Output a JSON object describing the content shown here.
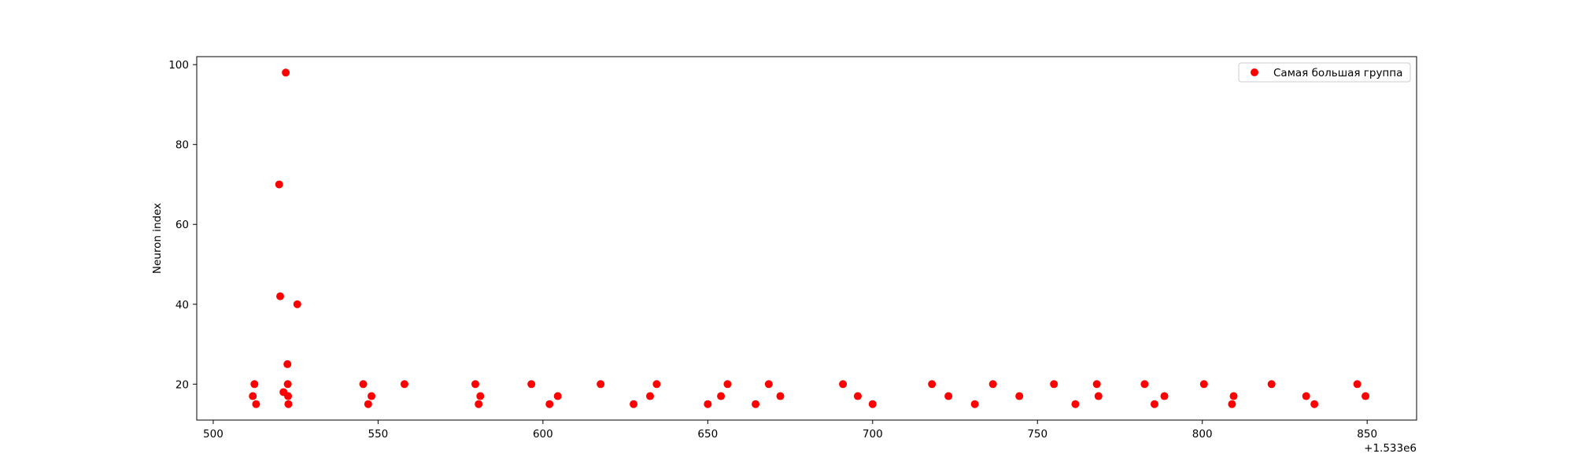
{
  "chart_data": {
    "type": "scatter",
    "title": "",
    "xlabel": "",
    "ylabel": "Neuron index",
    "x_offset_label": "+1.533e6",
    "xlim": [
      495,
      865
    ],
    "ylim": [
      11,
      102
    ],
    "x_ticks": [
      500,
      550,
      600,
      650,
      700,
      750,
      800,
      850
    ],
    "y_ticks": [
      20,
      40,
      60,
      80,
      100
    ],
    "grid": false,
    "legend_position": "upper-right",
    "series": [
      {
        "name": "Самая большая группа",
        "color": "#ff0000",
        "marker": "circle",
        "points": [
          {
            "x": 512,
            "y": 17
          },
          {
            "x": 512.5,
            "y": 20
          },
          {
            "x": 513,
            "y": 15
          },
          {
            "x": 520,
            "y": 70
          },
          {
            "x": 520.3,
            "y": 42
          },
          {
            "x": 521.3,
            "y": 18
          },
          {
            "x": 522,
            "y": 98
          },
          {
            "x": 522.5,
            "y": 25
          },
          {
            "x": 522.6,
            "y": 20
          },
          {
            "x": 522.7,
            "y": 17
          },
          {
            "x": 522.8,
            "y": 15
          },
          {
            "x": 525.5,
            "y": 40
          },
          {
            "x": 545.5,
            "y": 20
          },
          {
            "x": 547,
            "y": 15
          },
          {
            "x": 548,
            "y": 17
          },
          {
            "x": 558,
            "y": 20
          },
          {
            "x": 579.5,
            "y": 20
          },
          {
            "x": 580.5,
            "y": 15
          },
          {
            "x": 581,
            "y": 17
          },
          {
            "x": 596.5,
            "y": 20
          },
          {
            "x": 602,
            "y": 15
          },
          {
            "x": 604.5,
            "y": 17
          },
          {
            "x": 617.5,
            "y": 20
          },
          {
            "x": 627.5,
            "y": 15
          },
          {
            "x": 632.5,
            "y": 17
          },
          {
            "x": 634.5,
            "y": 20
          },
          {
            "x": 650,
            "y": 15
          },
          {
            "x": 654,
            "y": 17
          },
          {
            "x": 656,
            "y": 20
          },
          {
            "x": 664.5,
            "y": 15
          },
          {
            "x": 668.5,
            "y": 20
          },
          {
            "x": 672,
            "y": 17
          },
          {
            "x": 691,
            "y": 20
          },
          {
            "x": 695.5,
            "y": 17
          },
          {
            "x": 700,
            "y": 15
          },
          {
            "x": 718,
            "y": 20
          },
          {
            "x": 723,
            "y": 17
          },
          {
            "x": 731,
            "y": 15
          },
          {
            "x": 736.5,
            "y": 20
          },
          {
            "x": 744.5,
            "y": 17
          },
          {
            "x": 755,
            "y": 20
          },
          {
            "x": 761.5,
            "y": 15
          },
          {
            "x": 768,
            "y": 20
          },
          {
            "x": 768.5,
            "y": 17
          },
          {
            "x": 782.5,
            "y": 20
          },
          {
            "x": 785.5,
            "y": 15
          },
          {
            "x": 788.5,
            "y": 17
          },
          {
            "x": 800.5,
            "y": 20
          },
          {
            "x": 809,
            "y": 15
          },
          {
            "x": 809.5,
            "y": 17
          },
          {
            "x": 821,
            "y": 20
          },
          {
            "x": 831.5,
            "y": 17
          },
          {
            "x": 834,
            "y": 15
          },
          {
            "x": 847,
            "y": 20
          },
          {
            "x": 849.5,
            "y": 17
          }
        ]
      }
    ]
  }
}
